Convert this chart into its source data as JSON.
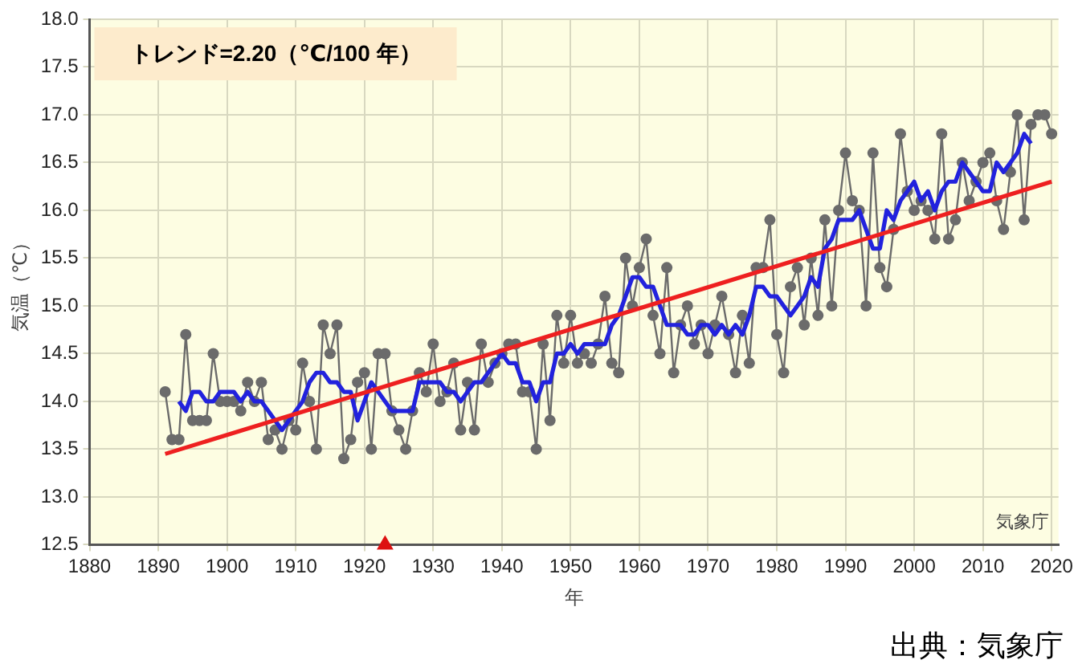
{
  "chart_data": {
    "type": "line",
    "xlabel": "年",
    "ylabel": "気温（℃）",
    "annotations": [
      "トレンド=2.20（℃/100 年）",
      "気象庁",
      "出典：気象庁"
    ],
    "xlim": [
      1880,
      2021
    ],
    "xticks": [
      1880,
      1890,
      1900,
      1910,
      1920,
      1930,
      1940,
      1950,
      1960,
      1970,
      1980,
      1990,
      2000,
      2010,
      2020
    ],
    "ylim": [
      12.5,
      18
    ],
    "yticks": [
      12.5,
      {
        "value": 13,
        "label": "13.0"
      },
      13.5,
      {
        "value": 14,
        "label": "14.0"
      },
      14.5,
      {
        "value": 15,
        "label": "15.0"
      },
      15.5,
      {
        "value": 16,
        "label": "16.0"
      },
      16.5,
      {
        "value": 17,
        "label": "17.0"
      },
      17.5,
      {
        "value": 18,
        "label": "18.0"
      }
    ],
    "grid": true,
    "legend": false,
    "series": [
      {
        "color": "#6b6b6b",
        "marker": "circle",
        "x": [
          1891,
          1892,
          1893,
          1894,
          1895,
          1896,
          1897,
          1898,
          1899,
          1900,
          1901,
          1902,
          1903,
          1904,
          1905,
          1906,
          1907,
          1908,
          1909,
          1910,
          1911,
          1912,
          1913,
          1914,
          1915,
          1916,
          1917,
          1918,
          1919,
          1920,
          1921,
          1922,
          1923,
          1924,
          1925,
          1926,
          1927,
          1928,
          1929,
          1930,
          1931,
          1932,
          1933,
          1934,
          1935,
          1936,
          1937,
          1938,
          1939,
          1940,
          1941,
          1942,
          1943,
          1944,
          1945,
          1946,
          1947,
          1948,
          1949,
          1950,
          1951,
          1952,
          1953,
          1954,
          1955,
          1956,
          1957,
          1958,
          1959,
          1960,
          1961,
          1962,
          1963,
          1964,
          1965,
          1966,
          1967,
          1968,
          1969,
          1970,
          1971,
          1972,
          1973,
          1974,
          1975,
          1976,
          1977,
          1978,
          1979,
          1980,
          1981,
          1982,
          1983,
          1984,
          1985,
          1986,
          1987,
          1988,
          1989,
          1990,
          1991,
          1992,
          1993,
          1994,
          1995,
          1996,
          1997,
          1998,
          1999,
          2000,
          2001,
          2002,
          2003,
          2004,
          2005,
          2006,
          2007,
          2008,
          2009,
          2010,
          2011,
          2012,
          2013,
          2014,
          2015,
          2016,
          2017,
          2018,
          2019,
          2020
        ],
        "values": [
          14.1,
          13.6,
          13.6,
          14.7,
          13.8,
          13.8,
          13.8,
          14.5,
          14.0,
          14.0,
          14.0,
          13.9,
          14.2,
          14.0,
          14.2,
          13.6,
          13.7,
          13.5,
          13.8,
          13.7,
          14.4,
          14.0,
          13.5,
          14.8,
          14.5,
          14.8,
          13.4,
          13.6,
          14.2,
          14.3,
          13.5,
          14.5,
          14.5,
          13.9,
          13.7,
          13.5,
          13.9,
          14.3,
          14.1,
          14.6,
          14.0,
          14.1,
          14.4,
          13.7,
          14.2,
          13.7,
          14.6,
          14.2,
          14.4,
          14.5,
          14.6,
          14.6,
          14.1,
          14.1,
          13.5,
          14.6,
          13.8,
          14.9,
          14.4,
          14.9,
          14.4,
          14.5,
          14.4,
          14.6,
          15.1,
          14.4,
          14.3,
          15.5,
          15.0,
          15.4,
          15.7,
          14.9,
          14.5,
          15.4,
          14.3,
          14.8,
          15.0,
          14.6,
          14.8,
          14.5,
          14.8,
          15.1,
          14.7,
          14.3,
          14.9,
          14.4,
          15.4,
          15.4,
          15.9,
          14.7,
          14.3,
          15.2,
          15.4,
          14.8,
          15.5,
          14.9,
          15.9,
          15.0,
          16.0,
          16.6,
          16.1,
          16.0,
          15.0,
          16.6,
          15.4,
          15.2,
          15.8,
          16.8,
          16.2,
          16.0,
          16.1,
          16.0,
          15.7,
          16.8,
          15.7,
          15.9,
          16.5,
          16.1,
          16.3,
          16.5,
          16.6,
          16.1,
          15.8,
          16.4,
          17.0,
          15.9,
          16.9,
          17.0,
          17.0,
          16.8
        ]
      },
      {
        "color": "#2222dd",
        "marker": "none",
        "x": [
          1893,
          1894,
          1895,
          1896,
          1897,
          1898,
          1899,
          1900,
          1901,
          1902,
          1903,
          1904,
          1905,
          1906,
          1907,
          1908,
          1909,
          1910,
          1911,
          1912,
          1913,
          1914,
          1915,
          1916,
          1917,
          1918,
          1919,
          1920,
          1921,
          1922,
          1923,
          1924,
          1925,
          1926,
          1927,
          1928,
          1929,
          1930,
          1931,
          1932,
          1933,
          1934,
          1935,
          1936,
          1937,
          1938,
          1939,
          1940,
          1941,
          1942,
          1943,
          1944,
          1945,
          1946,
          1947,
          1948,
          1949,
          1950,
          1951,
          1952,
          1953,
          1954,
          1955,
          1956,
          1957,
          1958,
          1959,
          1960,
          1961,
          1962,
          1963,
          1964,
          1965,
          1966,
          1967,
          1968,
          1969,
          1970,
          1971,
          1972,
          1973,
          1974,
          1975,
          1976,
          1977,
          1978,
          1979,
          1980,
          1981,
          1982,
          1983,
          1984,
          1985,
          1986,
          1987,
          1988,
          1989,
          1990,
          1991,
          1992,
          1993,
          1994,
          1995,
          1996,
          1997,
          1998,
          1999,
          2000,
          2001,
          2002,
          2003,
          2004,
          2005,
          2006,
          2007,
          2008,
          2009,
          2010,
          2011,
          2012,
          2013,
          2014,
          2015,
          2016,
          2017
        ],
        "values": [
          14.0,
          13.9,
          14.1,
          14.1,
          14.0,
          14.0,
          14.1,
          14.1,
          14.1,
          14.0,
          14.1,
          14.0,
          14.0,
          13.9,
          13.8,
          13.7,
          13.8,
          13.9,
          14.0,
          14.2,
          14.3,
          14.3,
          14.2,
          14.2,
          14.1,
          14.1,
          13.8,
          14.0,
          14.2,
          14.1,
          14.0,
          13.9,
          13.9,
          13.9,
          13.9,
          14.2,
          14.2,
          14.2,
          14.2,
          14.1,
          14.1,
          14.0,
          14.1,
          14.2,
          14.2,
          14.3,
          14.4,
          14.5,
          14.4,
          14.4,
          14.2,
          14.2,
          14.0,
          14.2,
          14.2,
          14.5,
          14.5,
          14.6,
          14.5,
          14.6,
          14.6,
          14.6,
          14.6,
          14.8,
          14.9,
          15.1,
          15.3,
          15.3,
          15.2,
          15.2,
          15.0,
          14.8,
          14.8,
          14.8,
          14.7,
          14.7,
          14.8,
          14.8,
          14.7,
          14.8,
          14.7,
          14.8,
          14.7,
          14.9,
          15.2,
          15.2,
          15.1,
          15.1,
          15.0,
          14.9,
          15.0,
          15.1,
          15.3,
          15.2,
          15.6,
          15.7,
          15.9,
          15.9,
          15.9,
          16.0,
          15.8,
          15.6,
          15.6,
          16.0,
          15.9,
          16.1,
          16.2,
          16.3,
          16.1,
          16.2,
          16.0,
          16.2,
          16.3,
          16.3,
          16.5,
          16.4,
          16.3,
          16.2,
          16.2,
          16.5,
          16.4,
          16.5,
          16.6,
          16.8,
          16.7
        ]
      },
      {
        "color": "#ee2020",
        "marker": "none",
        "x": [
          1891,
          2020
        ],
        "values": [
          13.45,
          16.3
        ]
      },
      {
        "type": "scatter",
        "color": "#dd1111",
        "marker": "triangle",
        "x": [
          1923
        ],
        "values": [
          12.5
        ]
      }
    ]
  }
}
